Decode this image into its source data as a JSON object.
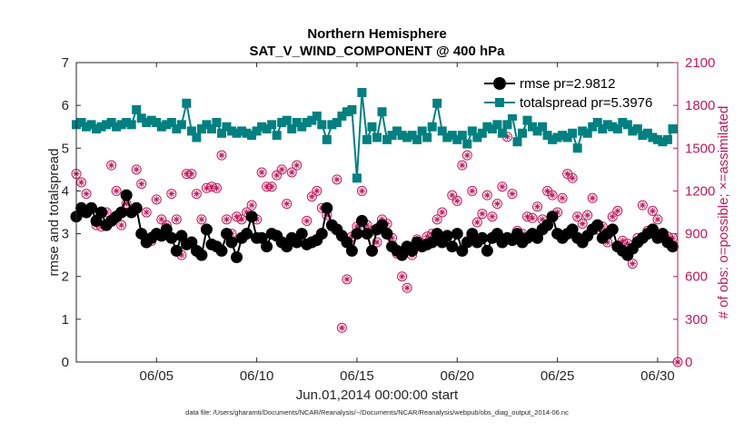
{
  "chart_data": {
    "type": "line",
    "title_line1": "Northern Hemisphere",
    "title_line2": "SAT_V_WIND_COMPONENT @ 400 hPa",
    "xlabel": "Jun.01,2014 00:00:00 start",
    "ylabel_left": "rmse and totalspread",
    "ylabel_right": "# of obs: o=possible; ×=assimilated",
    "footer": "data file: /Users/gharamti/Documents/NCAR/Reanalysis/~/Documents/NCAR/Reanalysis/webpub/obs_diag_output_2014-06.nc",
    "x_ticks": [
      "06/05",
      "06/10",
      "06/15",
      "06/20",
      "06/25",
      "06/30"
    ],
    "x_tick_values": [
      5,
      10,
      15,
      20,
      25,
      30
    ],
    "xlim": [
      1,
      31
    ],
    "y_left_ticks": [
      "0",
      "1",
      "2",
      "3",
      "4",
      "5",
      "6",
      "7"
    ],
    "ylim_left": [
      0,
      7
    ],
    "y_right_ticks": [
      "0",
      "300",
      "600",
      "900",
      "1200",
      "1500",
      "1800",
      "2100"
    ],
    "ylim_right": [
      0,
      2100
    ],
    "colors": {
      "rmse": "#000000",
      "totalspread": "#008080",
      "obs": "#c2185b",
      "axis": "#262626"
    },
    "series": [
      {
        "name": "rmse",
        "legend": "rmse pr=2.9812",
        "x": [
          1.0,
          1.25,
          1.5,
          1.75,
          2.0,
          2.25,
          2.5,
          2.75,
          3.0,
          3.25,
          3.5,
          3.75,
          4.0,
          4.25,
          4.5,
          4.75,
          5.0,
          5.25,
          5.5,
          5.75,
          6.0,
          6.25,
          6.5,
          6.75,
          7.0,
          7.25,
          7.5,
          7.75,
          8.0,
          8.25,
          8.5,
          8.75,
          9.0,
          9.25,
          9.5,
          9.75,
          10.0,
          10.25,
          10.5,
          10.75,
          11.0,
          11.25,
          11.5,
          11.75,
          12.0,
          12.25,
          12.5,
          12.75,
          13.0,
          13.25,
          13.5,
          13.75,
          14.0,
          14.25,
          14.5,
          14.75,
          15.0,
          15.25,
          15.5,
          15.75,
          16.0,
          16.25,
          16.5,
          16.75,
          17.0,
          17.25,
          17.5,
          17.75,
          18.0,
          18.25,
          18.5,
          18.75,
          19.0,
          19.25,
          19.5,
          19.75,
          20.0,
          20.25,
          20.5,
          20.75,
          21.0,
          21.25,
          21.5,
          21.75,
          22.0,
          22.25,
          22.5,
          22.75,
          23.0,
          23.25,
          23.5,
          23.75,
          24.0,
          24.25,
          24.5,
          24.75,
          25.0,
          25.25,
          25.5,
          25.75,
          26.0,
          26.25,
          26.5,
          26.75,
          27.0,
          27.25,
          27.5,
          27.75,
          28.0,
          28.25,
          28.5,
          28.75,
          29.0,
          29.25,
          29.5,
          29.75,
          30.0,
          30.25,
          30.5,
          30.75
        ],
        "values": [
          3.4,
          3.6,
          3.5,
          3.6,
          3.3,
          3.5,
          3.2,
          3.3,
          3.4,
          3.5,
          3.9,
          3.5,
          3.6,
          3.0,
          2.8,
          2.9,
          3.0,
          2.95,
          3.1,
          2.9,
          2.6,
          2.95,
          2.75,
          2.8,
          2.6,
          2.5,
          3.1,
          2.75,
          2.7,
          2.6,
          3.0,
          2.8,
          2.45,
          2.9,
          3.0,
          3.4,
          2.9,
          2.9,
          2.7,
          3.0,
          2.95,
          2.8,
          2.7,
          2.9,
          2.8,
          3.0,
          2.75,
          2.8,
          2.85,
          3.0,
          3.6,
          3.2,
          3.1,
          2.95,
          2.8,
          2.6,
          3.0,
          3.3,
          3.0,
          2.6,
          3.1,
          3.2,
          3.0,
          2.7,
          2.6,
          2.5,
          2.7,
          2.6,
          2.8,
          2.7,
          2.75,
          2.8,
          3.0,
          2.8,
          2.95,
          2.7,
          3.0,
          2.6,
          2.8,
          3.0,
          2.8,
          2.9,
          2.6,
          2.9,
          3.0,
          2.8,
          2.9,
          2.85,
          3.0,
          2.8,
          2.9,
          3.0,
          2.9,
          3.1,
          3.2,
          3.4,
          3.0,
          2.9,
          3.0,
          3.1,
          2.9,
          2.8,
          2.95,
          3.1,
          3.2,
          2.9,
          3.0,
          3.1,
          2.7,
          2.6,
          2.5,
          2.65,
          2.8,
          2.9,
          3.0,
          3.1,
          2.9,
          3.0,
          2.8,
          2.7
        ]
      },
      {
        "name": "totalspread",
        "legend": "totalspread pr=5.3976",
        "x": [
          1.0,
          1.25,
          1.5,
          1.75,
          2.0,
          2.25,
          2.5,
          2.75,
          3.0,
          3.25,
          3.5,
          3.75,
          4.0,
          4.25,
          4.5,
          4.75,
          5.0,
          5.25,
          5.5,
          5.75,
          6.0,
          6.25,
          6.5,
          6.75,
          7.0,
          7.25,
          7.5,
          7.75,
          8.0,
          8.25,
          8.5,
          8.75,
          9.0,
          9.25,
          9.5,
          9.75,
          10.0,
          10.25,
          10.5,
          10.75,
          11.0,
          11.25,
          11.5,
          11.75,
          12.0,
          12.25,
          12.5,
          12.75,
          13.0,
          13.25,
          13.5,
          13.75,
          14.0,
          14.25,
          14.5,
          14.75,
          15.0,
          15.25,
          15.5,
          15.75,
          16.0,
          16.25,
          16.5,
          16.75,
          17.0,
          17.25,
          17.5,
          17.75,
          18.0,
          18.25,
          18.5,
          18.75,
          19.0,
          19.25,
          19.5,
          19.75,
          20.0,
          20.25,
          20.5,
          20.75,
          21.0,
          21.25,
          21.5,
          21.75,
          22.0,
          22.25,
          22.5,
          22.75,
          23.0,
          23.25,
          23.5,
          23.75,
          24.0,
          24.25,
          24.5,
          24.75,
          25.0,
          25.25,
          25.5,
          25.75,
          26.0,
          26.25,
          26.5,
          26.75,
          27.0,
          27.25,
          27.5,
          27.75,
          28.0,
          28.25,
          28.5,
          28.75,
          29.0,
          29.25,
          29.5,
          29.75,
          30.0,
          30.25,
          30.5,
          30.75
        ],
        "values": [
          5.55,
          5.6,
          5.5,
          5.55,
          5.45,
          5.5,
          5.55,
          5.6,
          5.5,
          5.55,
          5.6,
          5.55,
          5.9,
          5.7,
          5.6,
          5.65,
          5.6,
          5.5,
          5.55,
          5.6,
          5.45,
          5.55,
          6.05,
          5.4,
          5.25,
          5.45,
          5.55,
          5.45,
          5.6,
          5.35,
          5.5,
          5.4,
          5.35,
          5.4,
          5.35,
          5.3,
          5.4,
          5.5,
          5.45,
          5.55,
          5.3,
          5.6,
          5.65,
          5.45,
          5.6,
          5.5,
          5.6,
          5.65,
          5.75,
          5.55,
          5.2,
          5.55,
          5.6,
          5.75,
          5.85,
          5.9,
          4.3,
          6.3,
          5.2,
          5.5,
          5.25,
          5.85,
          5.2,
          5.3,
          5.4,
          5.3,
          5.25,
          5.3,
          5.2,
          5.4,
          5.25,
          5.5,
          6.05,
          5.4,
          5.25,
          5.3,
          5.2,
          5.3,
          5.1,
          5.4,
          5.25,
          5.35,
          5.5,
          5.45,
          5.55,
          5.35,
          5.55,
          5.75,
          5.15,
          5.35,
          5.65,
          5.5,
          5.4,
          5.5,
          5.3,
          5.2,
          5.25,
          5.3,
          5.25,
          5.35,
          5.0,
          5.4,
          5.35,
          5.5,
          5.6,
          5.45,
          5.55,
          5.5,
          5.45,
          5.6,
          5.55,
          5.4,
          5.45,
          5.3,
          5.35,
          5.25,
          5.2,
          5.15,
          5.2,
          5.45
        ]
      },
      {
        "name": "obs_possible_assimilated",
        "x": [
          1.0,
          1.25,
          1.5,
          1.75,
          2.0,
          2.25,
          2.5,
          2.75,
          3.0,
          3.25,
          3.5,
          3.75,
          4.0,
          4.25,
          4.5,
          4.75,
          5.0,
          5.25,
          5.5,
          5.75,
          6.0,
          6.25,
          6.5,
          6.75,
          7.0,
          7.25,
          7.5,
          7.75,
          8.0,
          8.25,
          8.5,
          8.75,
          9.0,
          9.25,
          9.5,
          9.75,
          10.0,
          10.25,
          10.5,
          10.75,
          11.0,
          11.25,
          11.5,
          11.75,
          12.0,
          12.25,
          12.5,
          12.75,
          13.0,
          13.25,
          13.5,
          13.75,
          14.0,
          14.25,
          14.5,
          14.75,
          15.0,
          15.25,
          15.5,
          15.75,
          16.0,
          16.25,
          16.5,
          16.75,
          17.0,
          17.25,
          17.5,
          17.75,
          18.0,
          18.25,
          18.5,
          18.75,
          19.0,
          19.25,
          19.5,
          19.75,
          20.0,
          20.25,
          20.5,
          20.75,
          21.0,
          21.25,
          21.5,
          21.75,
          22.0,
          22.25,
          22.5,
          22.75,
          23.0,
          23.25,
          23.5,
          23.75,
          24.0,
          24.25,
          24.5,
          24.75,
          25.0,
          25.25,
          25.5,
          25.75,
          26.0,
          26.25,
          26.5,
          26.75,
          27.0,
          27.25,
          27.5,
          27.75,
          28.0,
          28.25,
          28.5,
          28.75,
          29.0,
          29.25,
          29.5,
          29.75,
          30.0,
          30.25,
          30.5,
          30.75,
          31.0
        ],
        "values": [
          1320,
          1260,
          1180,
          1080,
          960,
          950,
          1050,
          1380,
          1200,
          960,
          1110,
          1050,
          1350,
          1250,
          1050,
          850,
          1140,
          1000,
          960,
          1180,
          1000,
          750,
          1320,
          1320,
          1180,
          1000,
          1220,
          1230,
          1220,
          1450,
          1000,
          900,
          1020,
          1000,
          1050,
          1100,
          1000,
          1330,
          1230,
          1230,
          1310,
          1350,
          1110,
          1330,
          1380,
          900,
          990,
          1160,
          1200,
          1080,
          1030,
          950,
          1280,
          240,
          580,
          880,
          950,
          1200,
          960,
          920,
          840,
          1000,
          970,
          870,
          760,
          600,
          520,
          750,
          860,
          830,
          880,
          900,
          1000,
          1050,
          890,
          1170,
          1130,
          1380,
          1450,
          1200,
          980,
          1040,
          1170,
          1020,
          1110,
          1230,
          1580,
          1180,
          920,
          900,
          1020,
          1010,
          1090,
          1000,
          1200,
          1170,
          1050,
          1150,
          1320,
          1290,
          1020,
          970,
          1030,
          1150,
          930,
          950,
          840,
          1020,
          1060,
          850,
          830,
          690,
          870,
          1100,
          920,
          1060,
          1000,
          900,
          880,
          870,
          0
        ]
      }
    ],
    "legend_placement": "top-right"
  }
}
